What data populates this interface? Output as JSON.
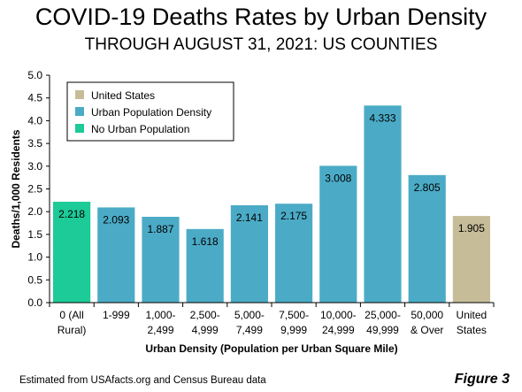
{
  "chart_data": {
    "type": "bar",
    "title": "COVID-19 Deaths Rates by Urban Density",
    "subtitle": "THROUGH AUGUST 31, 2021: US COUNTIES",
    "xlabel": "Urban Density (Population per Urban Square Mile)",
    "ylabel": "Deaths/1,000 Residents",
    "ylim": [
      0,
      5.0
    ],
    "yticks": [
      "0.0",
      "0.5",
      "1.0",
      "1.5",
      "2.0",
      "2.5",
      "3.0",
      "3.5",
      "4.0",
      "4.5",
      "5.0"
    ],
    "categories": [
      [
        "0 (All",
        "Rural)"
      ],
      [
        "1-999"
      ],
      [
        "1,000-",
        "2,499"
      ],
      [
        "2,500-",
        "4,999"
      ],
      [
        "5,000-",
        "7,499"
      ],
      [
        "7,500-",
        "9,999"
      ],
      [
        "10,000-",
        "24,999"
      ],
      [
        "25,000-",
        "49,999"
      ],
      [
        "50,000",
        "& Over"
      ],
      [
        "United",
        "States"
      ]
    ],
    "values": [
      2.218,
      2.093,
      1.887,
      1.618,
      2.141,
      2.175,
      3.008,
      4.333,
      2.805,
      1.905
    ],
    "value_labels": [
      "2.218",
      "2.093",
      "1.887",
      "1.618",
      "2.141",
      "2.175",
      "3.008",
      "4.333",
      "2.805",
      "1.905"
    ],
    "group": [
      "none",
      "urban",
      "urban",
      "urban",
      "urban",
      "urban",
      "urban",
      "urban",
      "urban",
      "us"
    ],
    "legend": [
      {
        "key": "us",
        "label": "United States",
        "color": "#c6bc98"
      },
      {
        "key": "urban",
        "label": "Urban Population Density",
        "color": "#4babc6"
      },
      {
        "key": "none",
        "label": "No Urban Population",
        "color": "#1ccb97"
      }
    ],
    "legend_position": "top-left",
    "grid": false
  },
  "source_note": "Estimated from USAfacts.org and Census Bureau data",
  "figure_label": "Figure 3"
}
